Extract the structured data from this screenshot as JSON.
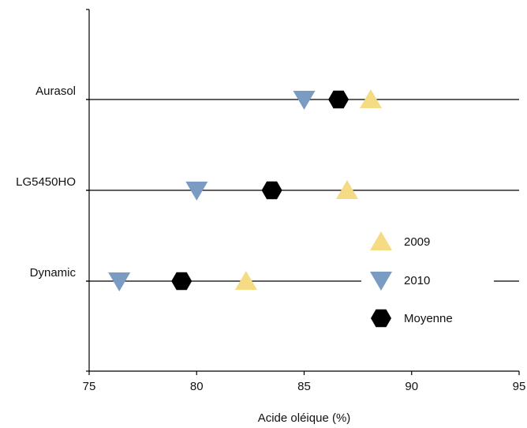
{
  "chart_data": {
    "type": "scatter",
    "title": "",
    "xlabel": "Acide oléique (%)",
    "ylabel": "",
    "xlim": [
      75,
      95
    ],
    "xticks": [
      "75",
      "80",
      "85",
      "90",
      "95"
    ],
    "grid": false,
    "legend_position": "right",
    "categories": [
      "Aurasol",
      "LG5450HO",
      "Dynamic"
    ],
    "series": [
      {
        "name": "2009",
        "marker": "triangle-up",
        "color": "#F5DC84",
        "values": [
          88.1,
          87.0,
          82.3
        ]
      },
      {
        "name": "2010",
        "marker": "triangle-down",
        "color": "#7A9CC2",
        "values": [
          85.0,
          80.0,
          76.4
        ]
      },
      {
        "name": "Moyenne",
        "marker": "hexagon",
        "color": "#000000",
        "values": [
          86.6,
          83.5,
          79.3
        ]
      }
    ]
  }
}
